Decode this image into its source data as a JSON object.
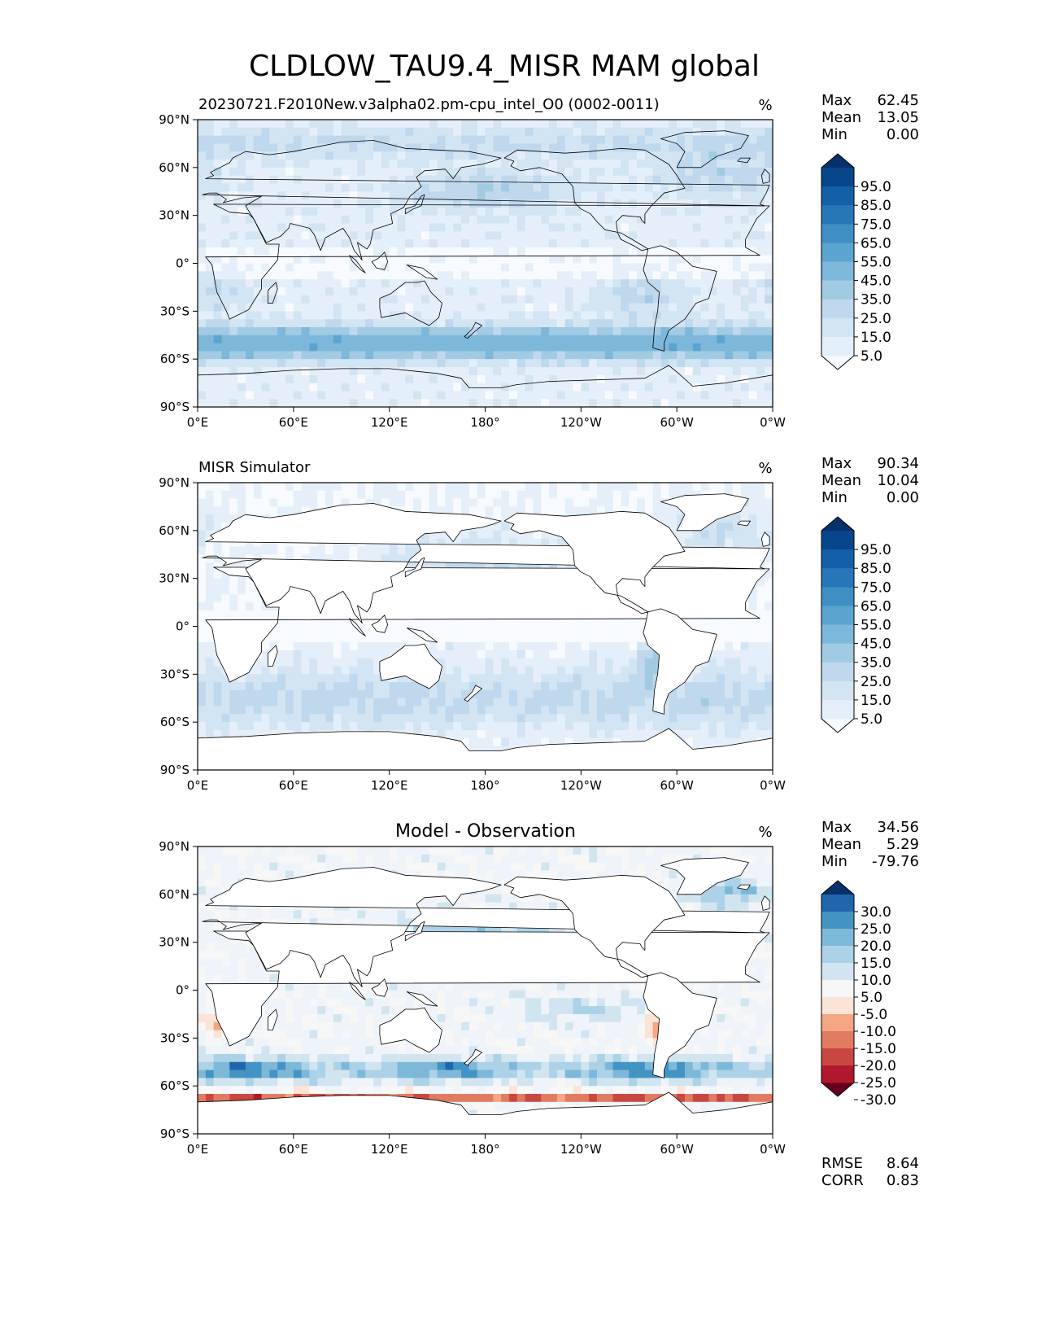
{
  "title": "CLDLOW_TAU9.4_MISR MAM global",
  "colors": {
    "blues": [
      "#f7fbff",
      "#e4eff9",
      "#d3e4f3",
      "#bfd8ed",
      "#a1cbe2",
      "#7db8da",
      "#5ca4d0",
      "#3f8fc4",
      "#2676b8",
      "#1460a8",
      "#08468b",
      "#08306b"
    ],
    "diff_blues": [
      "#eef4f9",
      "#d1e5f0",
      "#abd2e6",
      "#7eb8d9",
      "#4393c3",
      "#2166ac",
      "#08306b"
    ],
    "diff_reds": [
      "#f7f7f7",
      "#fbe3d5",
      "#f4a582",
      "#e07b62",
      "#c94741",
      "#b2182b",
      "#67001f"
    ],
    "ocean_background": "#f7fbff",
    "land": "#ffffff"
  },
  "chart_data": [
    {
      "type": "heatmap",
      "panel": "test",
      "title": "20230721.F2010New.v3alpha02.pm-cpu_intel_O0 (0002-0011)",
      "units": "%",
      "stats": [
        {
          "label": "Max",
          "value": "62.45"
        },
        {
          "label": "Mean",
          "value": "13.05"
        },
        {
          "label": "Min",
          "value": "0.00"
        }
      ],
      "colorbar_ticks": [
        "95.0",
        "85.0",
        "75.0",
        "65.0",
        "55.0",
        "45.0",
        "35.0",
        "25.0",
        "15.0",
        "5.0"
      ],
      "xticks": [
        "0°E",
        "60°E",
        "120°E",
        "180°",
        "120°W",
        "60°W",
        "0°W"
      ],
      "yticks": [
        "90°N",
        "60°N",
        "30°N",
        "0°",
        "30°S",
        "60°S",
        "90°S"
      ],
      "xlim": [
        0,
        360
      ],
      "ylim": [
        -90,
        90
      ]
    },
    {
      "type": "heatmap",
      "panel": "reference",
      "title": "MISR Simulator",
      "units": "%",
      "stats": [
        {
          "label": "Max",
          "value": "90.34"
        },
        {
          "label": "Mean",
          "value": "10.04"
        },
        {
          "label": "Min",
          "value": "0.00"
        }
      ],
      "colorbar_ticks": [
        "95.0",
        "85.0",
        "75.0",
        "65.0",
        "55.0",
        "45.0",
        "35.0",
        "25.0",
        "15.0",
        "5.0"
      ],
      "xticks": [
        "0°E",
        "60°E",
        "120°E",
        "180°",
        "120°W",
        "60°W",
        "0°W"
      ],
      "yticks": [
        "90°N",
        "60°N",
        "30°N",
        "0°",
        "30°S",
        "60°S",
        "90°S"
      ],
      "xlim": [
        0,
        360
      ],
      "ylim": [
        -90,
        90
      ]
    },
    {
      "type": "heatmap",
      "panel": "difference",
      "title": "Model - Observation",
      "units": "%",
      "stats": [
        {
          "label": "Max",
          "value": "34.56"
        },
        {
          "label": "Mean",
          "value": "5.29"
        },
        {
          "label": "Min",
          "value": "-79.76"
        }
      ],
      "extra_stats": [
        {
          "label": "RMSE",
          "value": "8.64"
        },
        {
          "label": "CORR",
          "value": "0.83"
        }
      ],
      "colorbar_ticks": [
        "30.0",
        "25.0",
        "20.0",
        "15.0",
        "10.0",
        "5.0",
        "-5.0",
        "-10.0",
        "-15.0",
        "-20.0",
        "-25.0",
        "-30.0"
      ],
      "xticks": [
        "0°E",
        "60°E",
        "120°E",
        "180°",
        "120°W",
        "60°W",
        "0°W"
      ],
      "yticks": [
        "90°N",
        "60°N",
        "30°N",
        "0°",
        "30°S",
        "60°S",
        "90°S"
      ],
      "xlim": [
        0,
        360
      ],
      "ylim": [
        -90,
        90
      ]
    }
  ]
}
